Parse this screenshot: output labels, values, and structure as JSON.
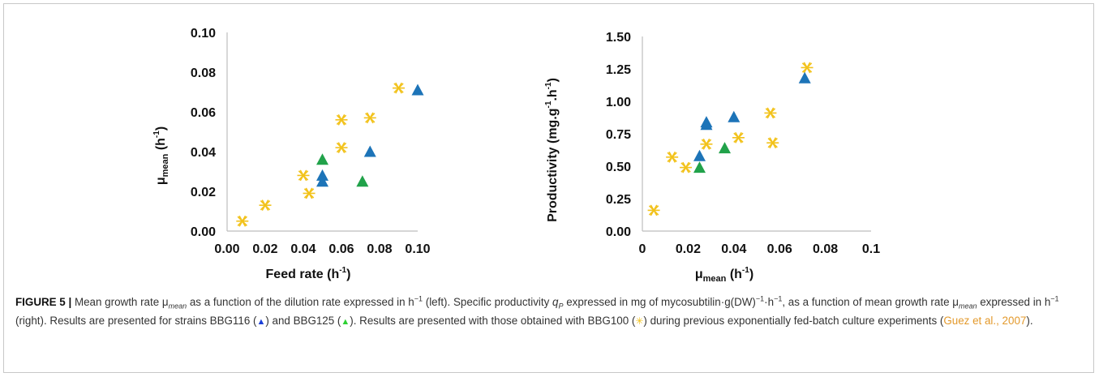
{
  "chart_data": [
    {
      "type": "scatter",
      "xlabel": "Feed rate (h-1)",
      "ylabel": "μmean (h-1)",
      "xlim": [
        0,
        0.1
      ],
      "ylim": [
        0,
        0.1
      ],
      "x_ticks": [
        "0.00",
        "0.02",
        "0.04",
        "0.06",
        "0.08",
        "0.10"
      ],
      "y_ticks": [
        "0.00",
        "0.02",
        "0.04",
        "0.06",
        "0.08",
        "0.10"
      ],
      "grid": false,
      "series": [
        {
          "name": "BBG100",
          "marker": "asterisk",
          "color": "#f2c21b",
          "points": [
            [
              0.008,
              0.005
            ],
            [
              0.02,
              0.013
            ],
            [
              0.04,
              0.028
            ],
            [
              0.043,
              0.019
            ],
            [
              0.06,
              0.056
            ],
            [
              0.06,
              0.042
            ],
            [
              0.075,
              0.057
            ],
            [
              0.09,
              0.072
            ]
          ]
        },
        {
          "name": "BBG116",
          "marker": "triangle",
          "color": "#1d74b8",
          "points": [
            [
              0.05,
              0.028
            ],
            [
              0.05,
              0.025
            ],
            [
              0.075,
              0.04
            ],
            [
              0.1,
              0.071
            ]
          ]
        },
        {
          "name": "BBG125",
          "marker": "triangle",
          "color": "#21a24a",
          "points": [
            [
              0.05,
              0.036
            ],
            [
              0.071,
              0.025
            ]
          ]
        }
      ]
    },
    {
      "type": "scatter",
      "xlabel": "μmean (h-1)",
      "ylabel": "Productivity (mg.g-1.h-1)",
      "xlim": [
        0,
        0.1
      ],
      "ylim": [
        0,
        1.5
      ],
      "x_ticks": [
        "0",
        "0.02",
        "0.04",
        "0.06",
        "0.08",
        "0.1"
      ],
      "y_ticks": [
        "0.00",
        "0.25",
        "0.50",
        "0.75",
        "1.00",
        "1.25",
        "1.50"
      ],
      "grid": false,
      "series": [
        {
          "name": "BBG100",
          "marker": "asterisk",
          "color": "#f2c21b",
          "points": [
            [
              0.005,
              0.16
            ],
            [
              0.013,
              0.57
            ],
            [
              0.019,
              0.49
            ],
            [
              0.028,
              0.67
            ],
            [
              0.042,
              0.72
            ],
            [
              0.056,
              0.91
            ],
            [
              0.057,
              0.68
            ],
            [
              0.072,
              1.26
            ]
          ]
        },
        {
          "name": "BBG116",
          "marker": "triangle",
          "color": "#1d74b8",
          "points": [
            [
              0.025,
              0.58
            ],
            [
              0.028,
              0.84
            ],
            [
              0.028,
              0.82
            ],
            [
              0.04,
              0.88
            ],
            [
              0.071,
              1.18
            ]
          ]
        },
        {
          "name": "BBG125",
          "marker": "triangle",
          "color": "#21a24a",
          "points": [
            [
              0.025,
              0.49
            ],
            [
              0.036,
              0.64
            ]
          ]
        }
      ]
    }
  ],
  "left_plot": {
    "y_axis": {
      "mu": "μ",
      "sub": "mean",
      "unit": " (h",
      "exp": "-1",
      "close": ")"
    },
    "x_axis": {
      "text": "Feed rate (h",
      "exp": "-1",
      "close": ")"
    }
  },
  "right_plot": {
    "y_axis": {
      "a": "Productivity (mg.g",
      "exp1": "-1",
      "b": ".h",
      "exp2": "-1",
      "close": ")"
    },
    "x_axis": {
      "mu": "μ",
      "sub": "mean",
      "unit": " (h",
      "exp": "-1",
      "close": ")"
    }
  },
  "caption": {
    "label": "FIGURE 5 |",
    "t1": " Mean growth rate μ",
    "mean1": "mean",
    "t2": " as a function of the dilution rate expressed in h",
    "exp1": "−1",
    "t3": " (left). Specific productivity ",
    "q": "q",
    "P": "P",
    "t4": " expressed in mg of mycosubtilin·g(DW)",
    "exp2": "−1",
    "t5": "·h",
    "exp3": "−1",
    "t6": ", as a function of mean growth rate μ",
    "mean2": "mean",
    "t7": " expressed in h",
    "exp4": "−1",
    "t8": " (right). Results are presented for strains BBG116 (",
    "tri1": "▲",
    "t9": ") and BBG125 (",
    "tri2": "▲",
    "t10": "). Results are presented with those obtained with BBG100 (",
    "star": "✳",
    "t11": ") during previous exponentially fed-batch culture experiments (",
    "ref": "Guez et al., 2007",
    "t12": ")."
  }
}
